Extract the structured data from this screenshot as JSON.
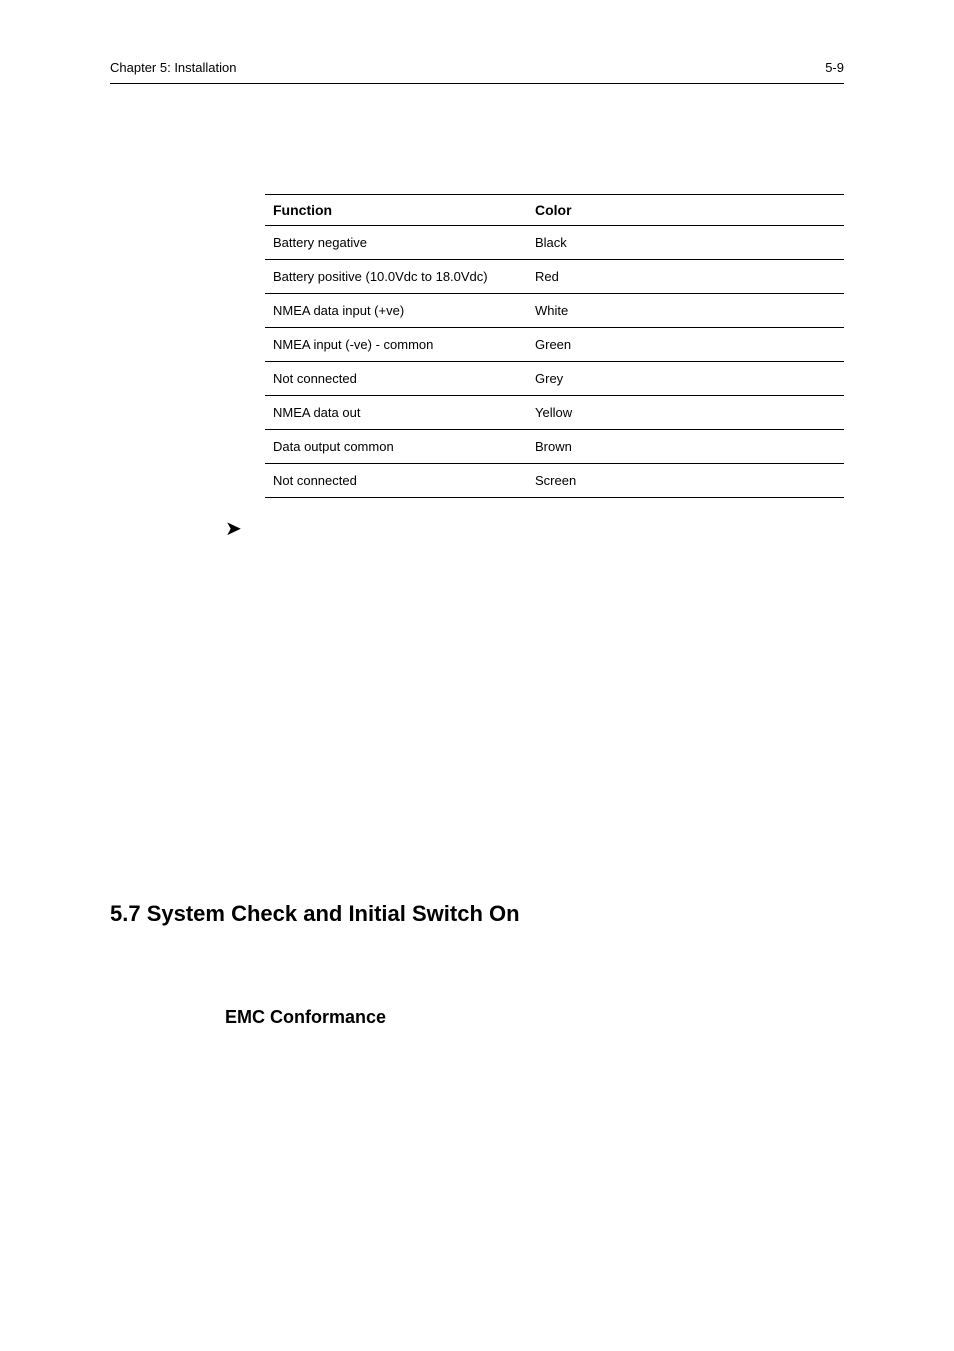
{
  "header": {
    "left": "Chapter 5: Installation",
    "right": "5-9"
  },
  "table": {
    "columns": {
      "function": "Function",
      "color": "Color"
    },
    "rows": [
      {
        "function": "Battery negative",
        "color": "Black"
      },
      {
        "function": "Battery positive (10.0Vdc to 18.0Vdc)",
        "color": "Red"
      },
      {
        "function": "NMEA data input (+ve)",
        "color": "White"
      },
      {
        "function": "NMEA input (-ve)  - common",
        "color": "Green"
      },
      {
        "function": "Not connected",
        "color": "Grey"
      },
      {
        "function": "NMEA data out",
        "color": "Yellow"
      },
      {
        "function": "Data output common",
        "color": "Brown"
      },
      {
        "function": "Not connected",
        "color": "Screen"
      }
    ]
  },
  "arrow_glyph": "➤",
  "section": {
    "title": "5.7  System Check and Initial Switch On",
    "subtitle": "EMC Conformance"
  },
  "style": {
    "page_bg": "#ffffff",
    "text_color": "#000000",
    "rule_color": "#000000",
    "header_fontsize": 13,
    "table_fontsize": 13,
    "table_header_fontsize": 14,
    "section_title_fontsize": 22,
    "sub_title_fontsize": 18
  }
}
